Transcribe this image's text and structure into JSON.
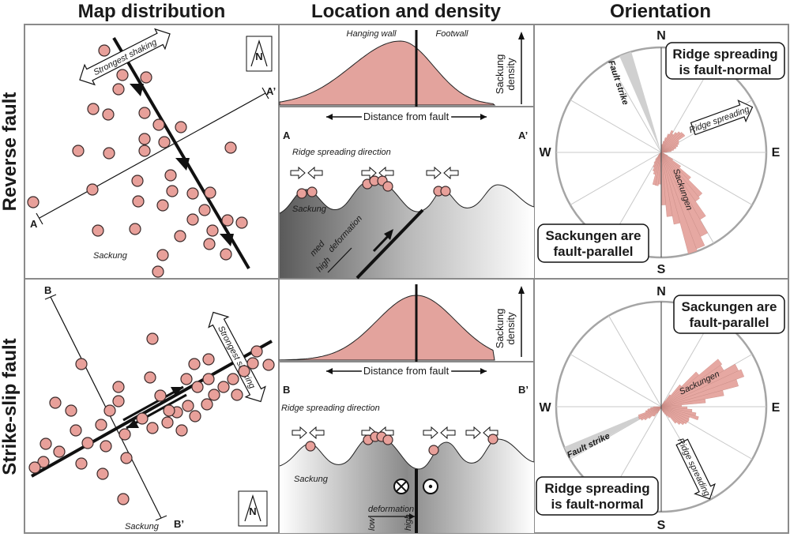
{
  "headers": {
    "col1": "Map distribution",
    "col2": "Location and density",
    "col3": "Orientation"
  },
  "rows": {
    "reverse": "Reverse fault",
    "strikeslip": "Strike-slip fault"
  },
  "map_panel": {
    "strongest_shaking": "Strongest shaking",
    "sackung": "Sackung",
    "north": "N",
    "reverse_profile_start": "A",
    "reverse_profile_end": "A’",
    "strikeslip_profile_start": "B",
    "strikeslip_profile_end": "B’"
  },
  "density_panel": {
    "hanging_wall": "Hanging wall",
    "footwall": "Footwall",
    "sackung_density_line1": "Sackung",
    "sackung_density_line2": "density",
    "distance_from_fault": "Distance from fault"
  },
  "cross_section": {
    "ridge_spreading_direction": "Ridge spreading direction",
    "sackung": "Sackung",
    "deformation": "deformation",
    "med": "med",
    "high": "high",
    "low": "low"
  },
  "orientation_panel": {
    "north": "N",
    "south": "S",
    "east": "E",
    "west": "W",
    "fault_strike": "Fault strike",
    "ridge_spreading": "Ridge spreading",
    "sackungen": "Sackungen",
    "reverse_box_top_line1": "Ridge spreading",
    "reverse_box_top_line2": "is fault-normal",
    "reverse_box_bottom_line1": "Sackungen are",
    "reverse_box_bottom_line2": "fault-parallel",
    "strikeslip_box_top_line1": "Sackungen are",
    "strikeslip_box_top_line2": "fault-parallel",
    "strikeslip_box_bottom_line1": "Ridge spreading",
    "strikeslip_box_bottom_line2": "is fault-normal"
  },
  "colors": {
    "sackung_fill": "#e8a09a",
    "density_fill": "#e3a39d",
    "panel_border": "#8a8a8a",
    "rose_fill": "#e6a8a2"
  }
}
